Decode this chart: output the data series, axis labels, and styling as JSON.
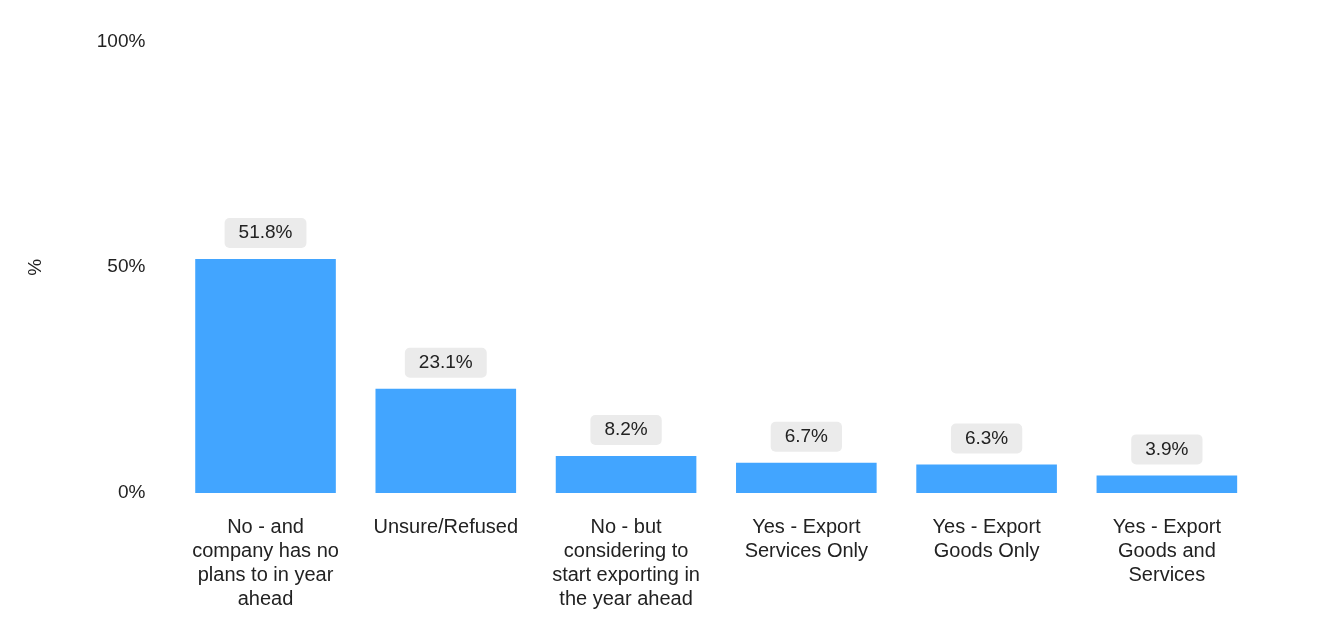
{
  "chart_data": {
    "type": "bar",
    "ylabel": "%",
    "categories": [
      "No - and company has no plans to in year ahead",
      "Unsure/Refused",
      "No - but considering to start exporting in the year ahead",
      "Yes - Export Services Only",
      "Yes - Export Goods Only",
      "Yes - Export Goods and Services"
    ],
    "values": [
      51.8,
      23.1,
      8.2,
      6.7,
      6.3,
      3.9
    ],
    "value_labels": [
      "51.8%",
      "23.1%",
      "8.2%",
      "6.7%",
      "6.3%",
      "3.9%"
    ],
    "color": "#42a5ff",
    "ylim": [
      0,
      100
    ],
    "yticks": [
      {
        "value": 0,
        "label": "0%"
      },
      {
        "value": 50,
        "label": "50%"
      },
      {
        "value": 100,
        "label": "100%"
      }
    ],
    "grid": false,
    "legend": false
  }
}
